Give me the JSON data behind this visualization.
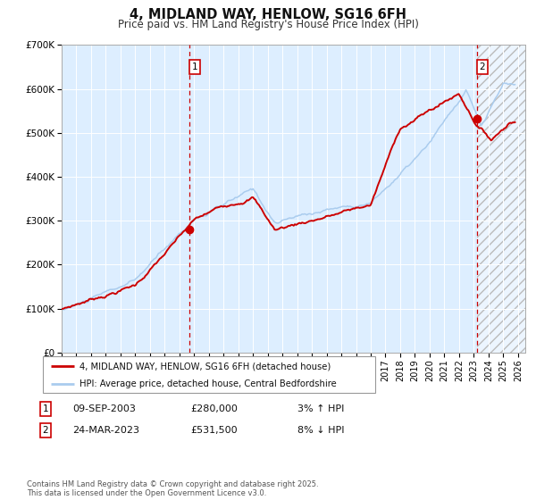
{
  "title": "4, MIDLAND WAY, HENLOW, SG16 6FH",
  "subtitle": "Price paid vs. HM Land Registry's House Price Index (HPI)",
  "xlim": [
    1995.0,
    2026.5
  ],
  "ylim": [
    0,
    700000
  ],
  "yticks": [
    0,
    100000,
    200000,
    300000,
    400000,
    500000,
    600000,
    700000
  ],
  "ytick_labels": [
    "£0",
    "£100K",
    "£200K",
    "£300K",
    "£400K",
    "£500K",
    "£600K",
    "£700K"
  ],
  "red_line_color": "#cc0000",
  "blue_line_color": "#aaccee",
  "bg_color": "#ddeeff",
  "grid_color": "#ffffff",
  "marker1_x": 2003.69,
  "marker1_y": 280000,
  "marker2_x": 2023.23,
  "marker2_y": 531500,
  "vline1_x": 2003.69,
  "vline2_x": 2023.23,
  "legend_line1": "4, MIDLAND WAY, HENLOW, SG16 6FH (detached house)",
  "legend_line2": "HPI: Average price, detached house, Central Bedfordshire",
  "table_row1": [
    "1",
    "09-SEP-2003",
    "£280,000",
    "3% ↑ HPI"
  ],
  "table_row2": [
    "2",
    "24-MAR-2023",
    "£531,500",
    "8% ↓ HPI"
  ],
  "footer": "Contains HM Land Registry data © Crown copyright and database right 2025.\nThis data is licensed under the Open Government Licence v3.0.",
  "title_fontsize": 10.5,
  "subtitle_fontsize": 8.5
}
